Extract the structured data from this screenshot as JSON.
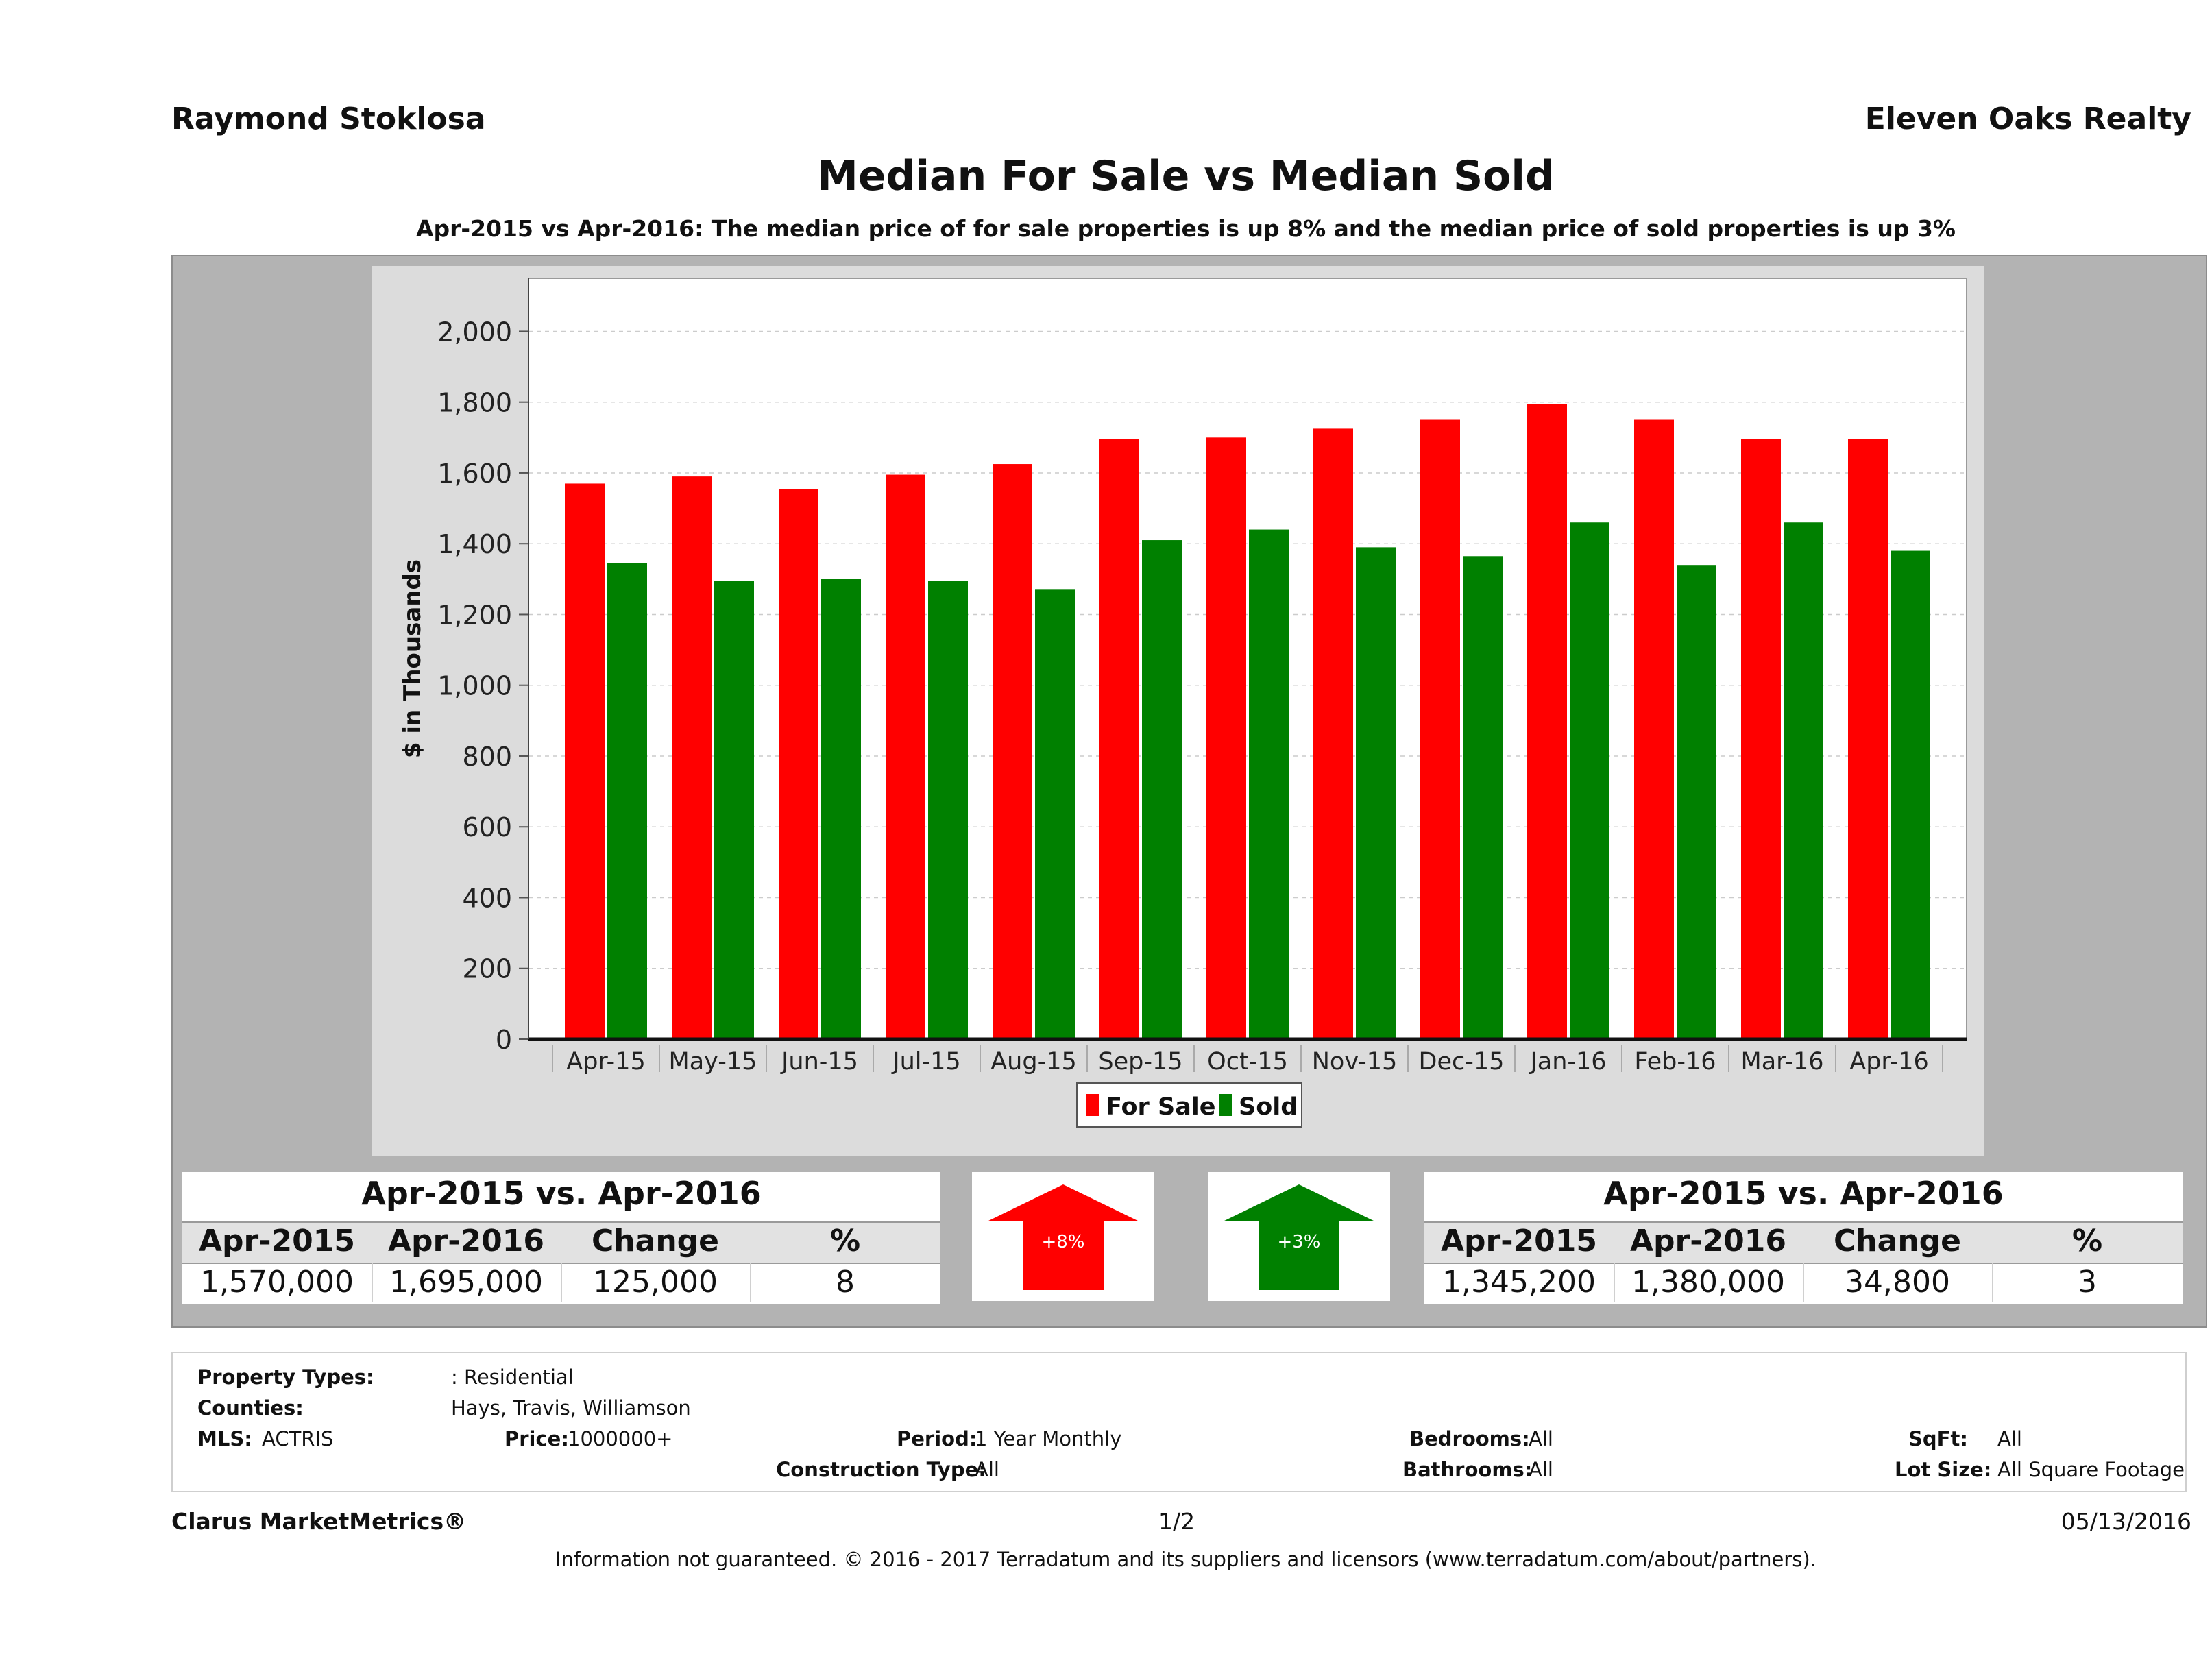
{
  "header": {
    "agent": "Raymond Stoklosa",
    "company": "Eleven Oaks Realty"
  },
  "title": "Median For Sale vs Median Sold",
  "subtitle": "Apr-2015 vs Apr-2016: The median price of for sale properties is up 8% and the median price of sold properties is up 3%",
  "chart_data": {
    "type": "bar",
    "categories": [
      "Apr-15",
      "May-15",
      "Jun-15",
      "Jul-15",
      "Aug-15",
      "Sep-15",
      "Oct-15",
      "Nov-15",
      "Dec-15",
      "Jan-16",
      "Feb-16",
      "Mar-16",
      "Apr-16"
    ],
    "series": [
      {
        "name": "For Sale",
        "color": "#ff0000",
        "values": [
          1570,
          1590,
          1555,
          1595,
          1625,
          1695,
          1700,
          1725,
          1750,
          1795,
          1750,
          1695,
          1695
        ]
      },
      {
        "name": "Sold",
        "color": "#008000",
        "values": [
          1345,
          1295,
          1300,
          1295,
          1270,
          1410,
          1440,
          1390,
          1365,
          1460,
          1340,
          1460,
          1380
        ]
      }
    ],
    "ylabel": "$ in Thousands",
    "ylim": [
      0,
      2150
    ],
    "yticks": [
      "0",
      "200",
      "400",
      "600",
      "800",
      "1,000",
      "1,200",
      "1,400",
      "1,600",
      "1,800",
      "2,000"
    ],
    "ytick_values": [
      0,
      200,
      400,
      600,
      800,
      1000,
      1200,
      1400,
      1600,
      1800,
      2000
    ],
    "grid": true,
    "legend_position": "bottom-center"
  },
  "for_sale_table": {
    "title": "Apr-2015 vs. Apr-2016",
    "headers": [
      "Apr-2015",
      "Apr-2016",
      "Change",
      "%"
    ],
    "values": [
      "1,570,000",
      "1,695,000",
      "125,000",
      "8"
    ]
  },
  "sold_table": {
    "title": "Apr-2015 vs. Apr-2016",
    "headers": [
      "Apr-2015",
      "Apr-2016",
      "Change",
      "%"
    ],
    "values": [
      "1,345,200",
      "1,380,000",
      "34,800",
      "3"
    ]
  },
  "for_sale_arrow": {
    "label": "+8%",
    "direction": "up",
    "color": "#ff0000"
  },
  "sold_arrow": {
    "label": "+3%",
    "direction": "up",
    "color": "#008000"
  },
  "criteria": {
    "property_types_label": "Property Types:",
    "property_types_value": ": Residential",
    "counties_label": "Counties:",
    "counties_value": "Hays, Travis, Williamson",
    "mls_label": "MLS:",
    "mls_value": "ACTRIS",
    "price_label": "Price:",
    "price_value": "1000000+",
    "period_label": "Period:",
    "period_value": "1 Year Monthly",
    "construction_label": "Construction Type:",
    "construction_value": "All",
    "bedrooms_label": "Bedrooms:",
    "bedrooms_value": "All",
    "bathrooms_label": "Bathrooms:",
    "bathrooms_value": "All",
    "sqft_label": "SqFt:",
    "sqft_value": "All",
    "lot_label": "Lot Size:",
    "lot_value": "All Square Footage"
  },
  "footer": {
    "brand": "Clarus MarketMetrics®",
    "page": "1/2",
    "date": "05/13/2016",
    "disclaimer": "Information not guaranteed. © 2016 - 2017 Terradatum and its suppliers and licensors (www.terradatum.com/about/partners)."
  }
}
